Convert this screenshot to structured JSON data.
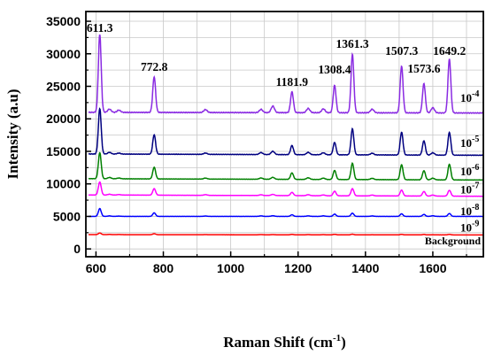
{
  "chart_data": {
    "type": "line",
    "xlabel": "Raman Shift (cm",
    "xlabel_sup": "-1",
    "xlabel_tail": ")",
    "ylabel": "Intensity (a.u)",
    "xlim": [
      570,
      1750
    ],
    "ylim": [
      -1200,
      36500
    ],
    "x_ticks": [
      600,
      800,
      1000,
      1200,
      1400,
      1600
    ],
    "y_ticks": [
      0,
      5000,
      10000,
      15000,
      20000,
      25000,
      30000,
      35000
    ],
    "grid": true,
    "peak_labels": [
      {
        "text": "611.3",
        "x": 611.3,
        "y": 33400
      },
      {
        "text": "772.8",
        "x": 772.8,
        "y": 27400
      },
      {
        "text": "1181.9",
        "x": 1181.9,
        "y": 25100
      },
      {
        "text": "1308.4",
        "x": 1308.4,
        "y": 27000
      },
      {
        "text": "1361.3",
        "x": 1361.3,
        "y": 30900
      },
      {
        "text": "1507.3",
        "x": 1507.3,
        "y": 29800
      },
      {
        "text": "1573.6",
        "x": 1573.6,
        "y": 27100
      },
      {
        "text": "1649.2",
        "x": 1649.2,
        "y": 29800
      }
    ],
    "peaks": [
      611.3,
      772.8,
      1181.9,
      1308.4,
      1361.3,
      1507.3,
      1573.6,
      1649.2
    ],
    "minor_peaks": [
      640,
      668,
      925,
      1090,
      1125,
      1230,
      1275,
      1420,
      1600
    ],
    "series": [
      {
        "label": "10",
        "exponent": "-4",
        "color": "#8a2be2",
        "baseline": 21000,
        "tail_baseline": 20900,
        "peak_heights": [
          12000,
          5500,
          3200,
          4200,
          9000,
          7200,
          4500,
          8300
        ],
        "minor_heights": [
          500,
          350,
          450,
          500,
          1000,
          650,
          600,
          550,
          800
        ]
      },
      {
        "label": "10",
        "exponent": "-5",
        "color": "#000080",
        "baseline": 14600,
        "tail_baseline": 14400,
        "peak_heights": [
          7000,
          3000,
          1400,
          1900,
          4000,
          3500,
          2200,
          3500
        ],
        "minor_heights": [
          250,
          150,
          200,
          300,
          500,
          350,
          300,
          250,
          350
        ]
      },
      {
        "label": "10",
        "exponent": "-6",
        "color": "#008000",
        "baseline": 10800,
        "tail_baseline": 10600,
        "peak_heights": [
          4000,
          1800,
          1000,
          1400,
          2500,
          2300,
          1400,
          2400
        ],
        "minor_heights": [
          200,
          120,
          150,
          200,
          300,
          250,
          200,
          200,
          250
        ]
      },
      {
        "label": "10",
        "exponent": "-7",
        "color": "#ff00ff",
        "baseline": 8300,
        "tail_baseline": 8100,
        "peak_heights": [
          2000,
          1000,
          500,
          700,
          1100,
          900,
          700,
          900
        ],
        "minor_heights": [
          120,
          80,
          100,
          120,
          180,
          150,
          120,
          120,
          150
        ]
      },
      {
        "label": "10",
        "exponent": "-8",
        "color": "#0000ff",
        "baseline": 5000,
        "tail_baseline": 5000,
        "peak_heights": [
          1200,
          550,
          250,
          350,
          500,
          400,
          300,
          450
        ],
        "minor_heights": [
          80,
          50,
          60,
          80,
          100,
          80,
          80,
          70,
          90
        ]
      },
      {
        "label": "10",
        "exponent": "-9",
        "color": "#ff0000",
        "baseline": 2200,
        "tail_baseline": 2150,
        "peak_heights": [
          250,
          150,
          60,
          80,
          100,
          90,
          70,
          90
        ],
        "minor_heights": [
          30,
          20,
          20,
          30,
          30,
          30,
          30,
          20,
          30
        ]
      }
    ],
    "background_label": "Background"
  }
}
